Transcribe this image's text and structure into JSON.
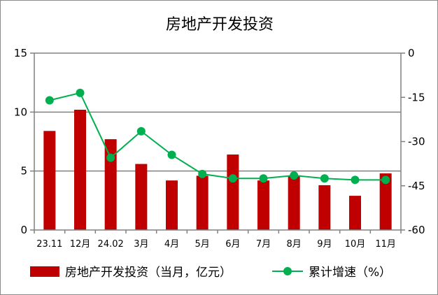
{
  "chart_data": {
    "type": "bar+line",
    "title": "房地产开发投资",
    "categories": [
      "23.11",
      "12月",
      "24.02",
      "3月",
      "4月",
      "5月",
      "6月",
      "7月",
      "8月",
      "9月",
      "10月",
      "11月"
    ],
    "series": [
      {
        "name": "房地产开发投资（当月，亿元）",
        "type": "bar",
        "axis": "left",
        "color": "#c00000",
        "values": [
          8.4,
          10.2,
          7.7,
          5.6,
          4.2,
          4.6,
          6.4,
          4.2,
          4.6,
          3.8,
          2.9,
          4.8
        ]
      },
      {
        "name": "累计增速（%）",
        "type": "line",
        "axis": "right",
        "color": "#00b050",
        "values": [
          -16.0,
          -13.5,
          -35.5,
          -26.5,
          -34.5,
          -41.0,
          -42.5,
          -42.5,
          -41.5,
          -42.5,
          -43.0,
          -43.0
        ]
      }
    ],
    "y_left": {
      "min": 0,
      "max": 15,
      "ticks": [
        "0",
        "5",
        "10",
        "15"
      ]
    },
    "y_right": {
      "min": -60,
      "max": 0,
      "ticks": [
        "-60",
        "-45",
        "-30",
        "-15",
        "0"
      ]
    },
    "grid": true,
    "legend_position": "bottom"
  }
}
